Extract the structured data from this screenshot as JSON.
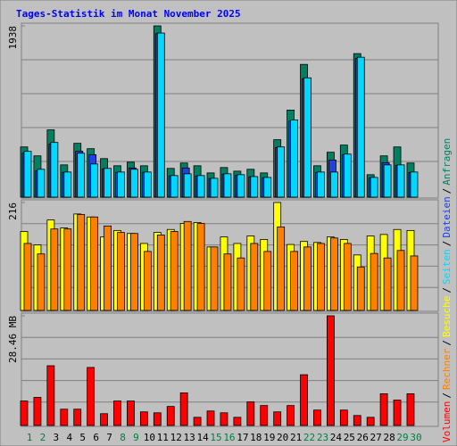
{
  "title": "Tages-Statistik im Monat November 2025",
  "legend_separator": "/",
  "chart_data": [
    {
      "type": "bar",
      "ylim": [
        0,
        1938
      ],
      "yticks": [
        1938
      ],
      "series": [
        {
          "name": "Anfragen",
          "color": "#008060",
          "values": [
            568,
            467,
            761,
            365,
            609,
            548,
            436,
            355,
            396,
            355,
            1938,
            325,
            386,
            355,
            274,
            335,
            294,
            315,
            274,
            650,
            985,
            1502,
            355,
            508,
            589,
            1624,
            254,
            467,
            568,
            386
          ]
        },
        {
          "name": "Dateien",
          "color": "#2040e0",
          "values": [
            500,
            300,
            600,
            280,
            520,
            480,
            320,
            280,
            330,
            280,
            1850,
            240,
            330,
            240,
            210,
            260,
            250,
            230,
            220,
            560,
            860,
            1340,
            280,
            420,
            480,
            1570,
            220,
            390,
            360,
            280
          ]
        },
        {
          "name": "Seiten",
          "color": "#00d8ff",
          "values": [
            518,
            315,
            619,
            284,
            497,
            375,
            325,
            284,
            315,
            284,
            1857,
            244,
            264,
            244,
            213,
            264,
            254,
            233,
            223,
            568,
            873,
            1350,
            284,
            284,
            487,
            1583,
            223,
            365,
            365,
            284
          ]
        }
      ]
    },
    {
      "type": "bar",
      "ylim": [
        0,
        216
      ],
      "yticks": [
        216
      ],
      "series": [
        {
          "name": "Besuche",
          "color": "#ffff00",
          "values": [
            158,
            131,
            181,
            165,
            193,
            187,
            147,
            160,
            154,
            134,
            156,
            162,
            174,
            176,
            127,
            147,
            134,
            149,
            142,
            216,
            132,
            138,
            136,
            147,
            142,
            111,
            149,
            152,
            162,
            160
          ]
        },
        {
          "name": "Rechner",
          "color": "#ff8000",
          "values": [
            134,
            113,
            163,
            163,
            192,
            187,
            169,
            156,
            154,
            118,
            151,
            158,
            178,
            174,
            127,
            113,
            105,
            134,
            118,
            167,
            118,
            127,
            134,
            145,
            134,
            87,
            114,
            105,
            120,
            109
          ]
        }
      ]
    },
    {
      "type": "bar",
      "ylim": [
        0,
        28.46
      ],
      "yticks": [
        {
          "value": 28.46,
          "label": "28.46 MB"
        }
      ],
      "categories": [
        "1",
        "2",
        "3",
        "4",
        "5",
        "6",
        "7",
        "8",
        "9",
        "10",
        "11",
        "12",
        "13",
        "14",
        "15",
        "16",
        "17",
        "18",
        "19",
        "20",
        "21",
        "22",
        "23",
        "24",
        "25",
        "26",
        "27",
        "28",
        "29",
        "30"
      ],
      "category_colors": [
        "#008040",
        "#008040",
        "#000000",
        "#000000",
        "#000000",
        "#000000",
        "#000000",
        "#008040",
        "#008040",
        "#000000",
        "#000000",
        "#000000",
        "#000000",
        "#000000",
        "#008040",
        "#008040",
        "#000000",
        "#000000",
        "#000000",
        "#000000",
        "#000000",
        "#008040",
        "#008040",
        "#000000",
        "#000000",
        "#000000",
        "#000000",
        "#000000",
        "#008040",
        "#008040"
      ],
      "series": [
        {
          "name": "Volumen",
          "color": "#ff0000",
          "values": [
            6.35,
            7.29,
            15.5,
            4.23,
            4.23,
            15.05,
            3.06,
            6.35,
            6.35,
            3.53,
            3.29,
            4.94,
            8.47,
            2.12,
            3.76,
            3.29,
            2.12,
            6.12,
            5.17,
            3.53,
            5.17,
            13.17,
            4.0,
            28.46,
            4.0,
            2.59,
            2.12,
            8.23,
            6.59,
            8.23
          ]
        }
      ]
    }
  ]
}
